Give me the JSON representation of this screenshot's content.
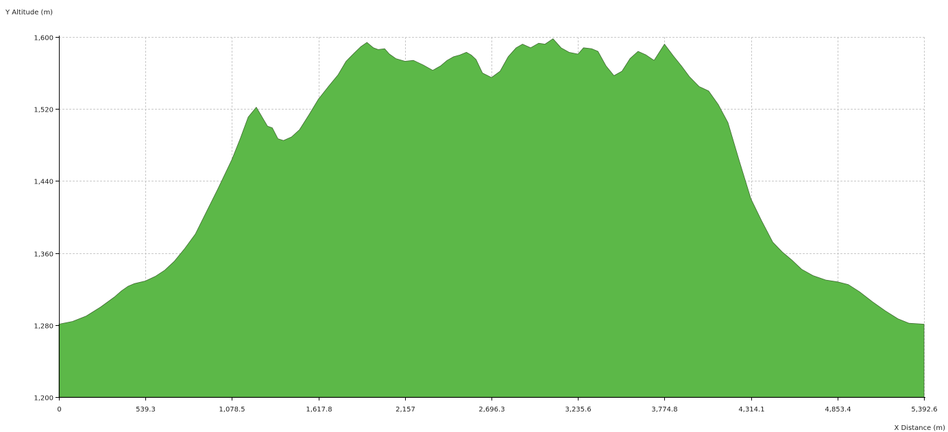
{
  "chart_data": {
    "type": "area",
    "ylabel": "Y Altitude (m)",
    "xlabel": "X Distance (m)",
    "xlim": [
      0,
      5392.6
    ],
    "ylim": [
      1200,
      1600
    ],
    "xticks": [
      {
        "value": 0,
        "label": "0"
      },
      {
        "value": 539.3,
        "label": "539.3"
      },
      {
        "value": 1078.5,
        "label": "1,078.5"
      },
      {
        "value": 1617.8,
        "label": "1,617.8"
      },
      {
        "value": 2157,
        "label": "2,157"
      },
      {
        "value": 2696.3,
        "label": "2,696.3"
      },
      {
        "value": 3235.6,
        "label": "3,235.6"
      },
      {
        "value": 3774.8,
        "label": "3,774.8"
      },
      {
        "value": 4314.1,
        "label": "4,314.1"
      },
      {
        "value": 4853.4,
        "label": "4,853.4"
      },
      {
        "value": 5392.6,
        "label": "5,392.6"
      }
    ],
    "yticks": [
      {
        "value": 1200,
        "label": "1,200"
      },
      {
        "value": 1280,
        "label": "1,280"
      },
      {
        "value": 1360,
        "label": "1,360"
      },
      {
        "value": 1440,
        "label": "1,440"
      },
      {
        "value": 1520,
        "label": "1,520"
      },
      {
        "value": 1600,
        "label": "1,600"
      }
    ],
    "grid": true,
    "series": [
      {
        "color": "#5cb848",
        "points": [
          [
            0,
            1281
          ],
          [
            85,
            1284
          ],
          [
            170,
            1290
          ],
          [
            260,
            1300
          ],
          [
            345,
            1311
          ],
          [
            390,
            1318
          ],
          [
            430,
            1323
          ],
          [
            470,
            1326
          ],
          [
            539.3,
            1329
          ],
          [
            600,
            1334
          ],
          [
            660,
            1341
          ],
          [
            720,
            1351
          ],
          [
            780,
            1364
          ],
          [
            850,
            1381
          ],
          [
            920,
            1406
          ],
          [
            990,
            1431
          ],
          [
            1078.5,
            1464
          ],
          [
            1130,
            1487
          ],
          [
            1180,
            1511
          ],
          [
            1230,
            1522
          ],
          [
            1300,
            1501
          ],
          [
            1330,
            1499
          ],
          [
            1365,
            1487
          ],
          [
            1400,
            1485
          ],
          [
            1450,
            1489
          ],
          [
            1500,
            1497
          ],
          [
            1560,
            1514
          ],
          [
            1617.8,
            1531
          ],
          [
            1680,
            1545
          ],
          [
            1740,
            1558
          ],
          [
            1790,
            1573
          ],
          [
            1840,
            1582
          ],
          [
            1880,
            1589
          ],
          [
            1920,
            1594
          ],
          [
            1960,
            1588
          ],
          [
            1990,
            1586
          ],
          [
            2030,
            1587
          ],
          [
            2060,
            1581
          ],
          [
            2100,
            1576
          ],
          [
            2157,
            1573
          ],
          [
            2210,
            1574
          ],
          [
            2270,
            1569
          ],
          [
            2330,
            1563
          ],
          [
            2380,
            1568
          ],
          [
            2420,
            1574
          ],
          [
            2460,
            1578
          ],
          [
            2500,
            1580
          ],
          [
            2540,
            1583
          ],
          [
            2570,
            1580
          ],
          [
            2600,
            1575
          ],
          [
            2640,
            1560
          ],
          [
            2696.3,
            1555
          ],
          [
            2750,
            1562
          ],
          [
            2800,
            1578
          ],
          [
            2850,
            1588
          ],
          [
            2890,
            1592
          ],
          [
            2940,
            1588
          ],
          [
            2990,
            1593
          ],
          [
            3030,
            1592
          ],
          [
            3080,
            1598
          ],
          [
            3130,
            1588
          ],
          [
            3180,
            1583
          ],
          [
            3235.6,
            1581
          ],
          [
            3270,
            1588
          ],
          [
            3320,
            1587
          ],
          [
            3360,
            1584
          ],
          [
            3410,
            1568
          ],
          [
            3460,
            1557
          ],
          [
            3510,
            1562
          ],
          [
            3560,
            1576
          ],
          [
            3610,
            1584
          ],
          [
            3660,
            1580
          ],
          [
            3710,
            1574
          ],
          [
            3774.8,
            1592
          ],
          [
            3830,
            1579
          ],
          [
            3880,
            1568
          ],
          [
            3930,
            1556
          ],
          [
            3990,
            1545
          ],
          [
            4050,
            1540
          ],
          [
            4110,
            1525
          ],
          [
            4170,
            1505
          ],
          [
            4240,
            1463
          ],
          [
            4314.1,
            1420
          ],
          [
            4380,
            1396
          ],
          [
            4450,
            1372
          ],
          [
            4510,
            1361
          ],
          [
            4570,
            1352
          ],
          [
            4630,
            1342
          ],
          [
            4700,
            1335
          ],
          [
            4780,
            1330
          ],
          [
            4853.4,
            1328
          ],
          [
            4920,
            1325
          ],
          [
            4990,
            1317
          ],
          [
            5070,
            1306
          ],
          [
            5150,
            1296
          ],
          [
            5230,
            1287
          ],
          [
            5300,
            1282
          ],
          [
            5392.6,
            1281
          ]
        ]
      }
    ]
  }
}
